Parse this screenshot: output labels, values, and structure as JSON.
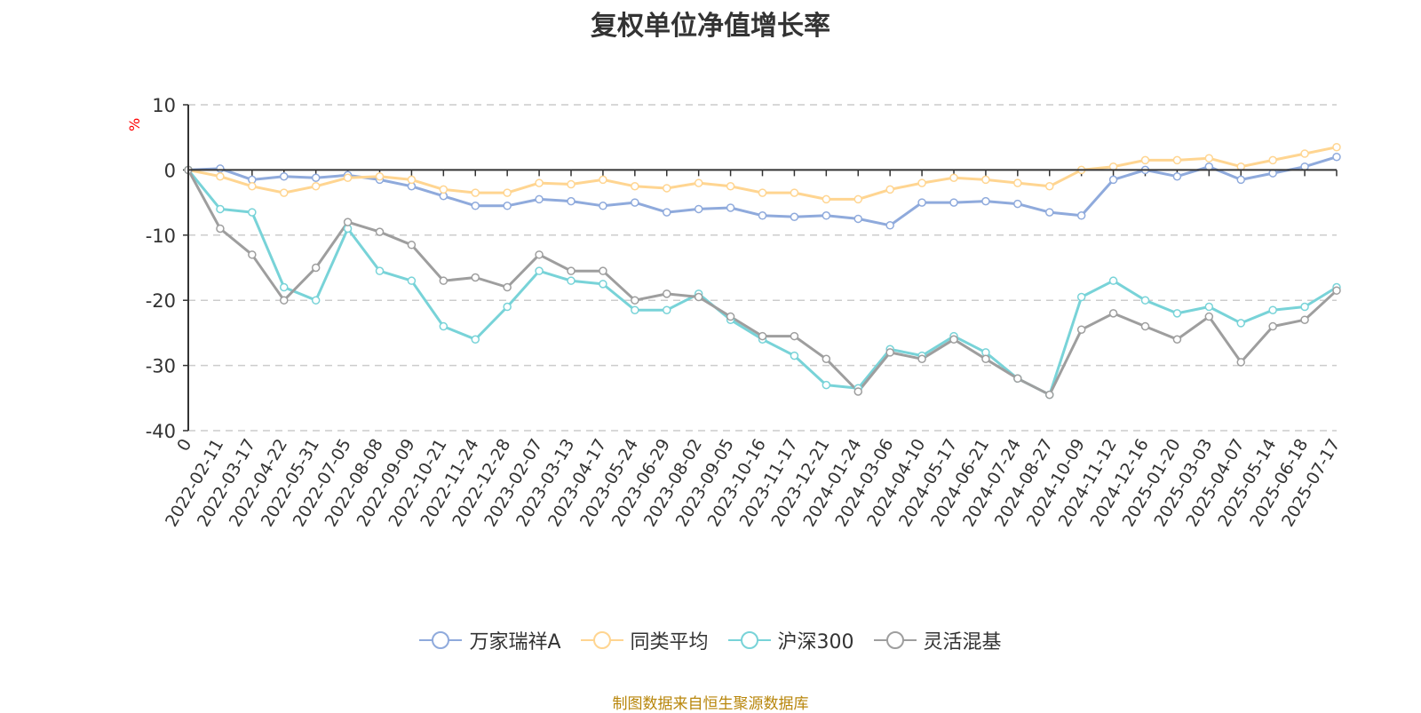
{
  "chart_data": {
    "type": "line",
    "title": "复权单位净值增长率",
    "ylabel": "%",
    "ylim": [
      -40,
      10
    ],
    "yticks": [
      "10",
      "0",
      "-10",
      "-20",
      "-30",
      "-40"
    ],
    "xticks": [
      "0",
      "2022-02-11",
      "2022-03-17",
      "2022-04-22",
      "2022-05-31",
      "2022-07-05",
      "2022-08-08",
      "2022-09-09",
      "2022-10-21",
      "2022-11-24",
      "2022-12-28",
      "2023-02-07",
      "2023-03-13",
      "2023-04-17",
      "2023-05-24",
      "2023-06-29",
      "2023-08-02",
      "2023-09-05",
      "2023-10-16",
      "2023-11-17",
      "2023-12-21",
      "2024-01-24",
      "2024-03-06",
      "2024-04-10",
      "2024-05-17",
      "2024-06-21",
      "2024-07-24",
      "2024-08-27",
      "2024-10-09",
      "2024-11-12",
      "2024-12-16",
      "2025-01-20",
      "2025-03-03",
      "2025-04-07",
      "2025-05-14",
      "2025-06-18",
      "2025-07-17"
    ],
    "grid": true,
    "legend_position": "bottom",
    "series": [
      {
        "name": "万家瑞祥A",
        "color": "#8faadc",
        "values": [
          0,
          0.2,
          -1.5,
          -1.0,
          -1.2,
          -0.8,
          -1.5,
          -2.5,
          -4.0,
          -5.5,
          -5.5,
          -4.5,
          -4.8,
          -5.5,
          -5.0,
          -6.5,
          -6.0,
          -5.8,
          -7.0,
          -7.2,
          -7.0,
          -7.5,
          -8.5,
          -5.0,
          -5.0,
          -4.8,
          -5.2,
          -6.5,
          -7.0,
          -1.5,
          0.0,
          -1.0,
          0.5,
          -1.5,
          -0.5,
          0.5,
          2.0
        ]
      },
      {
        "name": "同类平均",
        "color": "#ffd591",
        "values": [
          0,
          -1.0,
          -2.5,
          -3.5,
          -2.5,
          -1.2,
          -1.0,
          -1.5,
          -3.0,
          -3.5,
          -3.5,
          -2.0,
          -2.2,
          -1.5,
          -2.5,
          -2.8,
          -2.0,
          -2.5,
          -3.5,
          -3.5,
          -4.5,
          -4.5,
          -3.0,
          -2.0,
          -1.2,
          -1.5,
          -2.0,
          -2.5,
          0.0,
          0.5,
          1.5,
          1.5,
          1.8,
          0.5,
          1.5,
          2.5,
          3.5
        ]
      },
      {
        "name": "沪深300",
        "color": "#78d3d8",
        "values": [
          0,
          -6.0,
          -6.5,
          -18.0,
          -20.0,
          -9.0,
          -15.5,
          -17.0,
          -24.0,
          -26.0,
          -21.0,
          -15.5,
          -17.0,
          -17.5,
          -21.5,
          -21.5,
          -19.0,
          -23.0,
          -26.0,
          -28.5,
          -33.0,
          -33.5,
          -27.5,
          -28.5,
          -25.5,
          -28.0,
          -32.0,
          -34.5,
          -19.5,
          -17.0,
          -20.0,
          -22.0,
          -21.0,
          -23.5,
          -21.5,
          -21.0,
          -18.0
        ]
      },
      {
        "name": "灵活混基",
        "color": "#9e9e9e",
        "values": [
          0,
          -9.0,
          -13.0,
          -20.0,
          -15.0,
          -8.0,
          -9.5,
          -11.5,
          -17.0,
          -16.5,
          -18.0,
          -13.0,
          -15.5,
          -15.5,
          -20.0,
          -19.0,
          -19.5,
          -22.5,
          -25.5,
          -25.5,
          -29.0,
          -34.0,
          -28.0,
          -29.0,
          -26.0,
          -29.0,
          -32.0,
          -34.5,
          -24.5,
          -22.0,
          -24.0,
          -26.0,
          -22.5,
          -29.5,
          -24.0,
          -23.0,
          -18.5
        ]
      }
    ]
  },
  "source_note": "制图数据来自恒生聚源数据库"
}
